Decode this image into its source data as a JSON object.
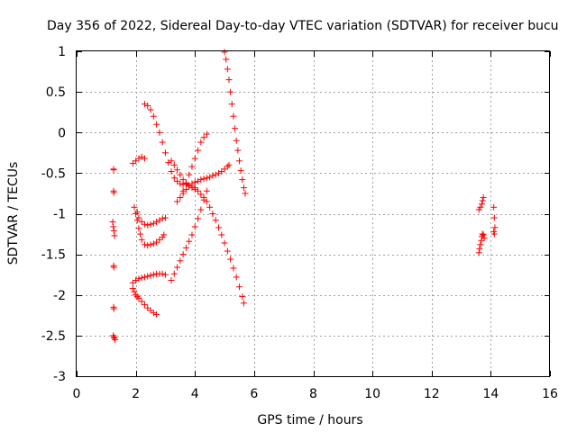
{
  "chart_data": {
    "type": "scatter",
    "title": "Day 356 of 2022, Sidereal Day-to-day VTEC variation (SDTVAR) for receiver bucu",
    "xlabel": "GPS time / hours",
    "ylabel": "SDTVAR / TECUs",
    "xlim": [
      0,
      16
    ],
    "ylim": [
      -3,
      1
    ],
    "xticks": [
      0,
      2,
      4,
      6,
      8,
      10,
      12,
      14,
      16
    ],
    "yticks": [
      -3,
      -2.5,
      -2,
      -1.5,
      -1,
      -0.5,
      0,
      0.5,
      1
    ],
    "grid": true,
    "marker": "+",
    "color": "#ff0000",
    "arcs": [
      {
        "x": [
          1.25,
          1.25
        ],
        "y": [
          -0.45,
          -0.46
        ]
      },
      {
        "x": [
          1.25,
          1.26
        ],
        "y": [
          -0.72,
          -0.74
        ]
      },
      {
        "x": [
          1.22,
          1.24,
          1.26,
          1.28
        ],
        "y": [
          -1.1,
          -1.16,
          -1.21,
          -1.27
        ]
      },
      {
        "x": [
          1.25,
          1.26
        ],
        "y": [
          -1.64,
          -1.66
        ]
      },
      {
        "x": [
          1.25,
          1.26
        ],
        "y": [
          -2.15,
          -2.17
        ]
      },
      {
        "x": [
          1.24,
          1.26,
          1.28,
          1.3
        ],
        "y": [
          -2.5,
          -2.52,
          -2.53,
          -2.55
        ]
      },
      {
        "x": [
          1.9,
          2.0,
          2.1,
          2.2,
          2.3
        ],
        "y": [
          -0.38,
          -0.35,
          -0.32,
          -0.3,
          -0.32
        ]
      },
      {
        "x": [
          1.95,
          2.05,
          2.1,
          2.2,
          2.3,
          2.4,
          2.5,
          2.6,
          2.7,
          2.8,
          2.9,
          3.0
        ],
        "y": [
          -0.92,
          -0.98,
          -1.05,
          -1.1,
          -1.13,
          -1.14,
          -1.13,
          -1.12,
          -1.1,
          -1.08,
          -1.06,
          -1.05
        ]
      },
      {
        "x": [
          2.0,
          2.05,
          2.1,
          2.15,
          2.2,
          2.3,
          2.4,
          2.5,
          2.6,
          2.7,
          2.8,
          2.9,
          2.95
        ],
        "y": [
          -1.0,
          -1.08,
          -1.18,
          -1.25,
          -1.32,
          -1.38,
          -1.39,
          -1.38,
          -1.37,
          -1.35,
          -1.32,
          -1.29,
          -1.26
        ]
      },
      {
        "x": [
          2.3,
          2.4,
          2.5,
          2.6,
          2.7,
          2.8,
          2.9,
          3.0,
          3.1,
          3.2,
          3.3,
          3.4,
          3.5,
          3.6,
          3.7,
          3.8,
          3.9,
          4.0,
          4.1,
          4.2,
          4.3,
          4.4,
          4.5,
          4.6,
          4.7,
          4.8,
          4.9,
          5.0,
          5.1,
          5.2,
          5.3,
          5.4,
          5.5,
          5.6,
          5.65
        ],
        "y": [
          0.35,
          0.33,
          0.28,
          0.2,
          0.1,
          0.0,
          -0.12,
          -0.25,
          -0.37,
          -0.48,
          -0.56,
          -0.6,
          -0.63,
          -0.64,
          -0.64,
          -0.65,
          -0.66,
          -0.68,
          -0.72,
          -0.76,
          -0.8,
          -0.85,
          -0.92,
          -1.0,
          -1.08,
          -1.17,
          -1.26,
          -1.36,
          -1.46,
          -1.56,
          -1.67,
          -1.78,
          -1.9,
          -2.02,
          -2.1
        ]
      },
      {
        "x": [
          1.9,
          2.0,
          2.1,
          2.2,
          2.3,
          2.4,
          2.5,
          2.6,
          2.7,
          2.8,
          2.9,
          3.0
        ],
        "y": [
          -1.85,
          -1.82,
          -1.8,
          -1.79,
          -1.78,
          -1.77,
          -1.76,
          -1.75,
          -1.74,
          -1.74,
          -1.74,
          -1.75
        ]
      },
      {
        "x": [
          1.9,
          1.95,
          2.0,
          2.05,
          2.1,
          2.2,
          2.3,
          2.4,
          2.5,
          2.6,
          2.7
        ],
        "y": [
          -1.92,
          -1.96,
          -2.0,
          -2.02,
          -2.04,
          -2.08,
          -2.12,
          -2.16,
          -2.19,
          -2.22,
          -2.24
        ]
      },
      {
        "x": [
          3.2,
          3.3,
          3.4,
          3.5,
          3.6,
          3.7,
          3.8,
          3.9,
          4.0
        ],
        "y": [
          -0.35,
          -0.4,
          -0.46,
          -0.52,
          -0.58,
          -0.63,
          -0.66,
          -0.68,
          -0.7
        ]
      },
      {
        "x": [
          3.2,
          3.3,
          3.4,
          3.5,
          3.6,
          3.7,
          3.8,
          3.9,
          4.0,
          4.1,
          4.2,
          4.3,
          4.4
        ],
        "y": [
          -1.82,
          -1.74,
          -1.66,
          -1.58,
          -1.5,
          -1.42,
          -1.34,
          -1.26,
          -1.16,
          -1.06,
          -0.95,
          -0.83,
          -0.72
        ]
      },
      {
        "x": [
          3.4,
          3.5,
          3.6,
          3.7,
          3.8,
          3.9,
          4.0,
          4.1,
          4.2,
          4.3,
          4.4,
          4.5,
          4.6,
          4.7,
          4.8,
          4.9,
          5.0,
          5.1,
          5.15
        ],
        "y": [
          -0.85,
          -0.8,
          -0.75,
          -0.7,
          -0.66,
          -0.63,
          -0.61,
          -0.6,
          -0.58,
          -0.57,
          -0.56,
          -0.55,
          -0.53,
          -0.52,
          -0.5,
          -0.48,
          -0.45,
          -0.42,
          -0.4
        ]
      },
      {
        "x": [
          3.6,
          3.7,
          3.8,
          3.9,
          4.0,
          4.1,
          4.2,
          4.3,
          4.4
        ],
        "y": [
          -0.72,
          -0.62,
          -0.52,
          -0.42,
          -0.32,
          -0.22,
          -0.12,
          -0.06,
          -0.02
        ]
      },
      {
        "x": [
          5.0,
          5.05,
          5.1,
          5.15,
          5.2,
          5.25,
          5.3,
          5.35,
          5.4,
          5.45,
          5.5,
          5.55,
          5.6,
          5.65,
          5.7
        ],
        "y": [
          0.99,
          0.9,
          0.78,
          0.65,
          0.5,
          0.35,
          0.2,
          0.05,
          -0.1,
          -0.22,
          -0.35,
          -0.47,
          -0.58,
          -0.68,
          -0.75
        ]
      },
      {
        "x": [
          13.6,
          13.65,
          13.7,
          13.72,
          13.75
        ],
        "y": [
          -0.95,
          -0.92,
          -0.88,
          -0.84,
          -0.8
        ]
      },
      {
        "x": [
          13.6,
          13.62,
          13.65,
          13.68,
          13.7,
          13.72,
          13.75,
          13.78
        ],
        "y": [
          -1.48,
          -1.43,
          -1.38,
          -1.33,
          -1.28,
          -1.25,
          -1.26,
          -1.3
        ]
      },
      {
        "x": [
          14.1,
          14.12,
          14.14
        ],
        "y": [
          -0.92,
          -1.05,
          -1.17
        ]
      },
      {
        "x": [
          14.1,
          14.12
        ],
        "y": [
          -1.22,
          -1.25
        ]
      }
    ]
  }
}
